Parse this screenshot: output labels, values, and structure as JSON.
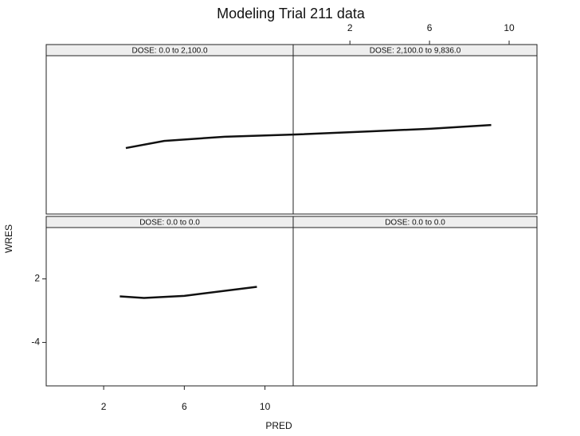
{
  "chart_data": {
    "type": "line",
    "title": "Modeling Trial 211 data",
    "xlabel": "PRED",
    "ylabel": "WRES",
    "xlim": [
      -0.85,
      11.4
    ],
    "ylim": [
      -8.1,
      7.9
    ],
    "xticks": [
      2,
      6,
      10
    ],
    "yticks": [
      2,
      -4
    ],
    "color": "#111111",
    "panels": [
      {
        "strip": "DOSE: 0.0 to 2,100.0",
        "x": [
          3.1,
          5,
          8,
          11.4
        ],
        "values": [
          -1.87,
          -1.2,
          -0.8,
          -0.6
        ]
      },
      {
        "strip": "DOSE: 2,100.0 to 9,836.0",
        "x": [
          -0.85,
          3,
          6,
          9.1
        ],
        "values": [
          -0.6,
          -0.3,
          -0.05,
          0.3
        ]
      },
      {
        "strip": "DOSE: 0.0 to 0.0",
        "x": [
          2.8,
          4,
          6,
          9.6
        ],
        "values": [
          0.35,
          0.2,
          0.4,
          1.25
        ]
      },
      {
        "strip": "DOSE: 0.0 to 0.0",
        "x": [],
        "values": []
      }
    ]
  }
}
